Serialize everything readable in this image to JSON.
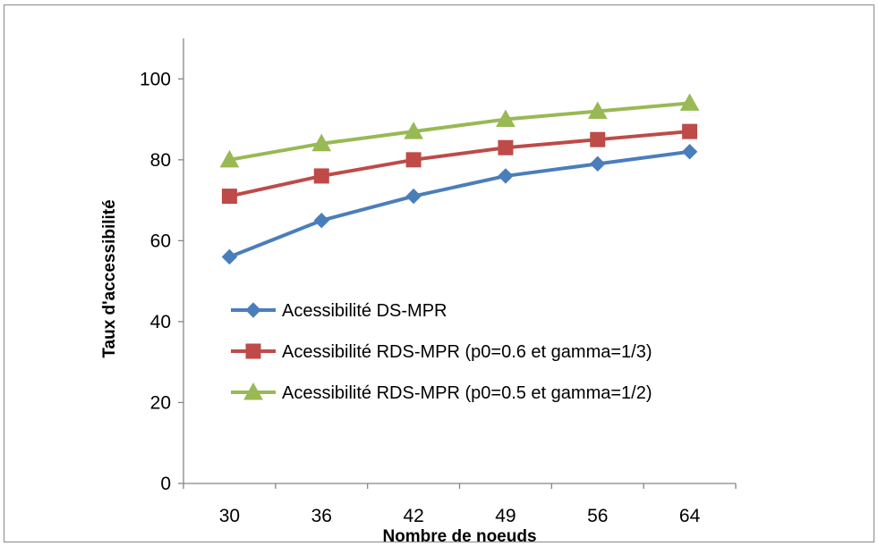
{
  "chart_data": {
    "type": "line",
    "title": "",
    "xlabel": "Nombre de noeuds",
    "ylabel": "Taux d'accessibilité",
    "categories": [
      "30",
      "36",
      "42",
      "49",
      "56",
      "64"
    ],
    "ylim": [
      0,
      110
    ],
    "yticks": [
      0,
      20,
      40,
      60,
      80,
      100
    ],
    "grid": false,
    "legend_position": "center-right",
    "series": [
      {
        "name": "Acessibilité DS-MPR",
        "marker": "diamond",
        "color": "#4a7ebb",
        "values": [
          56,
          65,
          71,
          76,
          79,
          82
        ]
      },
      {
        "name": "Acessibilité RDS-MPR (p0=0.6 et gamma=1/3)",
        "marker": "square",
        "color": "#be4b48",
        "values": [
          71,
          76,
          80,
          83,
          85,
          87
        ]
      },
      {
        "name": "Acessibilité RDS-MPR (p0=0.5 et gamma=1/2)",
        "marker": "triangle",
        "color": "#98b954",
        "values": [
          80,
          84,
          87,
          90,
          92,
          94
        ]
      }
    ]
  }
}
